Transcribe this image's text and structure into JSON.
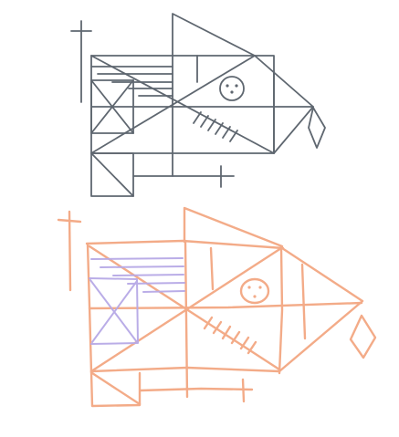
{
  "colors": {
    "reference_stroke": "#5f6770",
    "sketch_orange": "#f2a37c",
    "sketch_purple": "#b7a9e6",
    "background": "#ffffff"
  },
  "figures": [
    {
      "name": "reference-figure",
      "style": "clean-geometric"
    },
    {
      "name": "sketch-copy-figure",
      "style": "hand-drawn"
    }
  ]
}
